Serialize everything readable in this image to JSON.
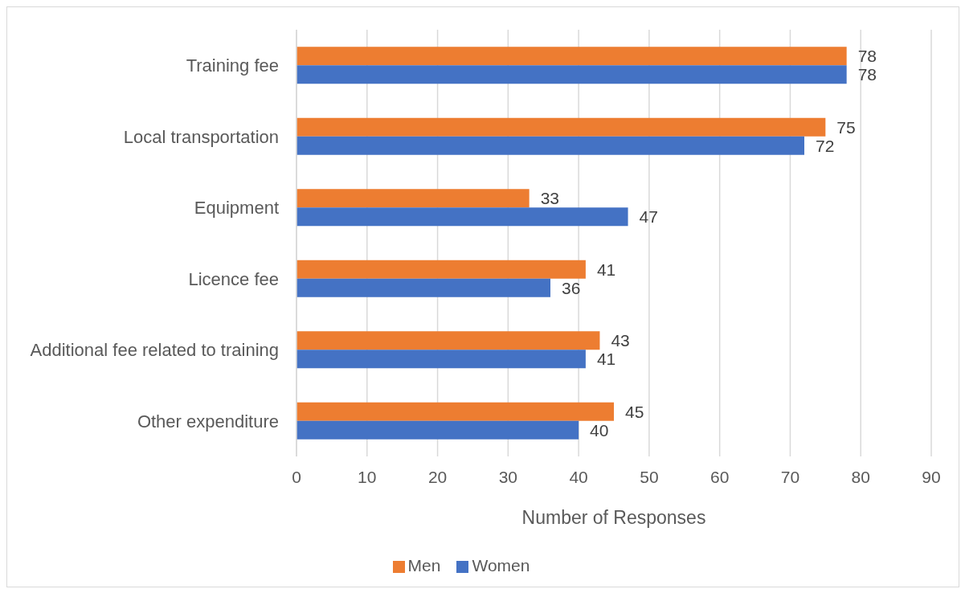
{
  "chart_data": {
    "type": "bar",
    "orientation": "horizontal",
    "categories": [
      "Training fee",
      "Local transportation",
      "Equipment",
      "Licence fee",
      "Additional fee related to training",
      "Other expenditure"
    ],
    "series": [
      {
        "name": "Men",
        "color": "#ed7d31",
        "values": [
          78,
          75,
          33,
          41,
          43,
          45
        ]
      },
      {
        "name": "Women",
        "color": "#4472c4",
        "values": [
          78,
          72,
          47,
          36,
          41,
          40
        ]
      }
    ],
    "xlabel": "Number of Responses",
    "xlim": [
      0,
      90
    ],
    "xticks": [
      0,
      10,
      20,
      30,
      40,
      50,
      60,
      70,
      80,
      90
    ],
    "grid": "x",
    "legend": "bottom",
    "data_labels": true
  }
}
